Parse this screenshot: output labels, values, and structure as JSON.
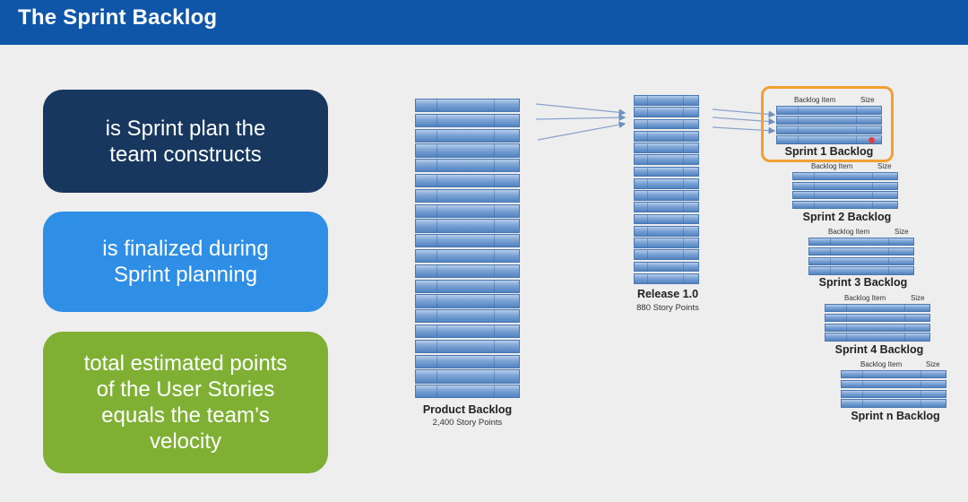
{
  "header": {
    "title": "The Sprint Backlog"
  },
  "boxes": [
    {
      "lines": [
        "is Sprint plan the",
        "team constructs"
      ],
      "color": "#17375e"
    },
    {
      "lines": [
        "is finalized during",
        "Sprint planning"
      ],
      "color": "#2f8ee6"
    },
    {
      "lines": [
        "total estimated points",
        "of the User Stories",
        "equals the team’s",
        "velocity"
      ],
      "color": "#7fb034"
    }
  ],
  "product_backlog": {
    "label": "Product Backlog",
    "points": "2,400 Story Points"
  },
  "release": {
    "label": "Release 1.0",
    "points": "880 Story Points"
  },
  "sprints": [
    {
      "label": "Sprint 1 Backlog",
      "item_label": "Backlog Item",
      "size_label": "Size"
    },
    {
      "label": "Sprint 2 Backlog",
      "item_label": "Backlog Item",
      "size_label": "Size"
    },
    {
      "label": "Sprint 3 Backlog",
      "item_label": "Backlog Item",
      "size_label": "Size"
    },
    {
      "label": "Sprint 4 Backlog",
      "item_label": "Backlog Item",
      "size_label": "Size"
    },
    {
      "label": "Sprint n Backlog",
      "item_label": "Backlog Item",
      "size_label": "Size"
    }
  ]
}
